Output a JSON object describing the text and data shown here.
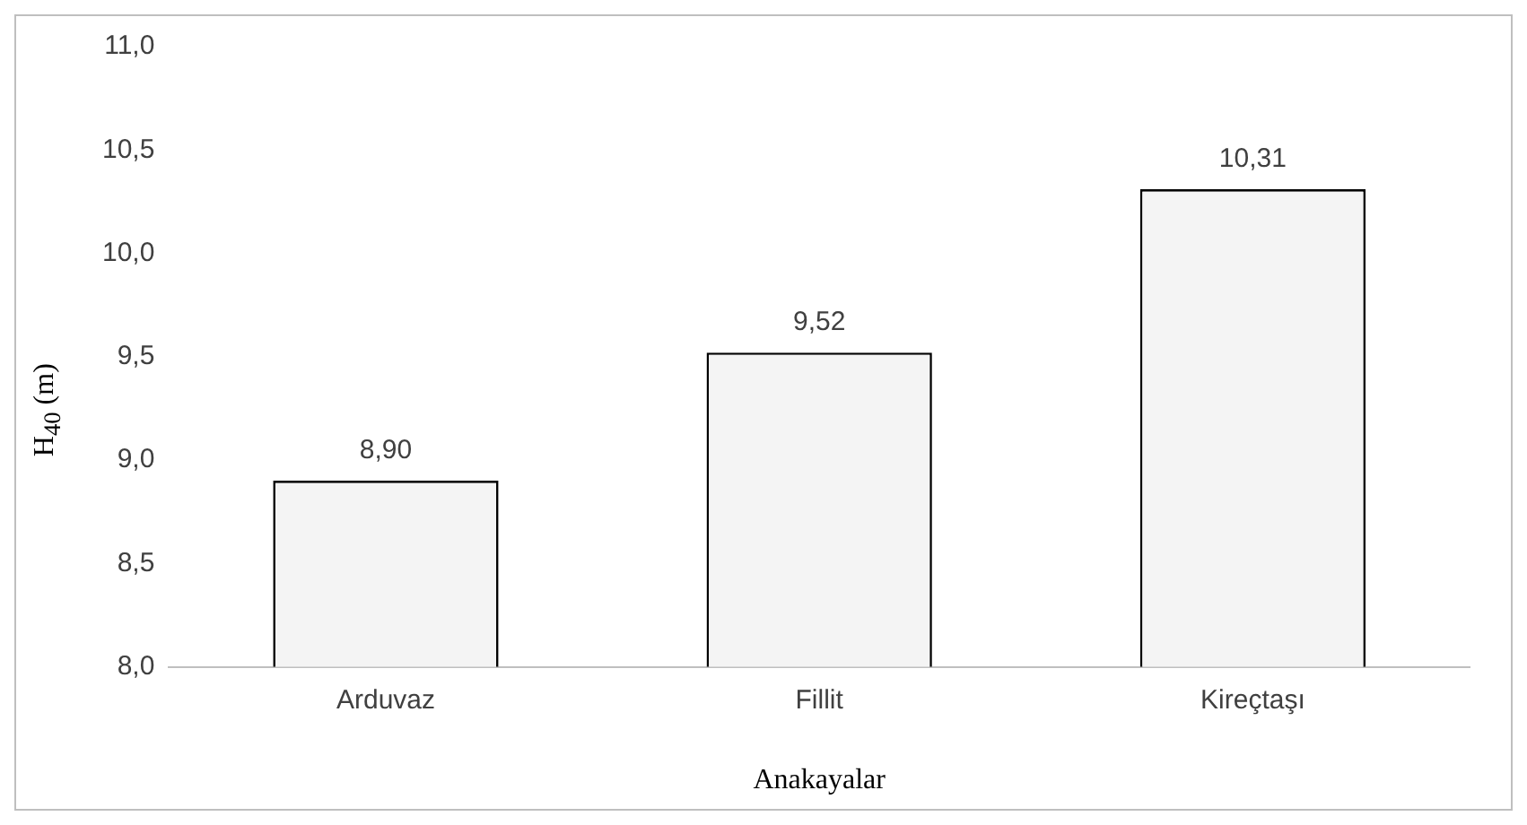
{
  "chart_data": {
    "type": "bar",
    "categories": [
      "Arduvaz",
      "Fillit",
      "Kireçtaşı"
    ],
    "values": [
      8.9,
      9.52,
      10.31
    ],
    "color": "#f4f4f4",
    "value_labels": [
      "8,90",
      "9,52",
      "10,31"
    ],
    "xlabel": "Anakayalar",
    "ylabel": "H$_{40}$ (m)",
    "ylim": [
      8,
      11
    ],
    "yticks": [
      {
        "value": 8,
        "label": "8,0"
      },
      {
        "value": 8.5,
        "label": "8,5"
      },
      {
        "value": 9,
        "label": "9,0"
      },
      {
        "value": 9.5,
        "label": "9,5"
      },
      {
        "value": 10,
        "label": "10,0"
      },
      {
        "value": 10.5,
        "label": "10,5"
      },
      {
        "value": 11,
        "label": "11,0"
      }
    ],
    "grid": false,
    "legend": false
  }
}
